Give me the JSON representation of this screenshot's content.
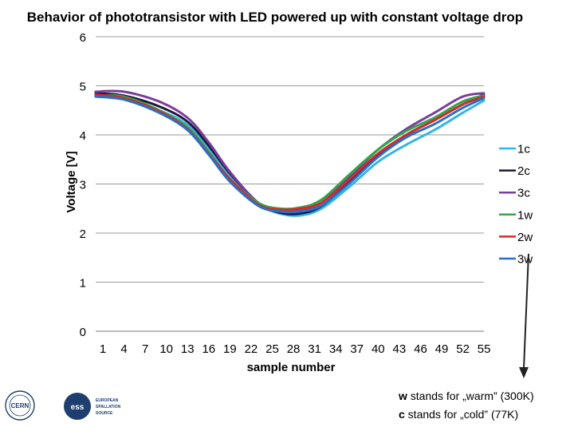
{
  "chart_data": {
    "type": "line",
    "title": "Behavior of phototransistor with LED powered up with constant voltage drop",
    "xlabel": "sample number",
    "ylabel": "Voltage [V]",
    "ylim": [
      0,
      6
    ],
    "yticks": [
      0,
      1,
      2,
      3,
      4,
      5,
      6
    ],
    "xticks": [
      1,
      4,
      7,
      10,
      13,
      16,
      19,
      22,
      25,
      28,
      31,
      34,
      37,
      40,
      43,
      46,
      49,
      52,
      55
    ],
    "grid": "horizontal",
    "legend_position": "right",
    "series": [
      {
        "name": "1c",
        "color": "#33b5e5",
        "points": [
          [
            1,
            4.78
          ],
          [
            5,
            4.72
          ],
          [
            10,
            4.5
          ],
          [
            14,
            4.2
          ],
          [
            17,
            3.7
          ],
          [
            20,
            3.15
          ],
          [
            24,
            2.6
          ],
          [
            27,
            2.4
          ],
          [
            30,
            2.36
          ],
          [
            33,
            2.5
          ],
          [
            37,
            2.95
          ],
          [
            41,
            3.45
          ],
          [
            45,
            3.8
          ],
          [
            49,
            4.1
          ],
          [
            53,
            4.45
          ],
          [
            56,
            4.7
          ]
        ]
      },
      {
        "name": "2c",
        "color": "#1a1a3e",
        "points": [
          [
            1,
            4.85
          ],
          [
            5,
            4.8
          ],
          [
            10,
            4.58
          ],
          [
            14,
            4.27
          ],
          [
            17,
            3.78
          ],
          [
            20,
            3.22
          ],
          [
            24,
            2.62
          ],
          [
            27,
            2.42
          ],
          [
            30,
            2.4
          ],
          [
            33,
            2.55
          ],
          [
            37,
            3.05
          ],
          [
            41,
            3.6
          ],
          [
            45,
            4.0
          ],
          [
            49,
            4.3
          ],
          [
            53,
            4.62
          ],
          [
            56,
            4.82
          ]
        ]
      },
      {
        "name": "3c",
        "color": "#7b3d9a",
        "points": [
          [
            1,
            4.88
          ],
          [
            5,
            4.88
          ],
          [
            10,
            4.68
          ],
          [
            14,
            4.35
          ],
          [
            17,
            3.85
          ],
          [
            20,
            3.25
          ],
          [
            24,
            2.62
          ],
          [
            27,
            2.47
          ],
          [
            30,
            2.48
          ],
          [
            33,
            2.62
          ],
          [
            37,
            3.15
          ],
          [
            41,
            3.7
          ],
          [
            45,
            4.12
          ],
          [
            49,
            4.45
          ],
          [
            53,
            4.78
          ],
          [
            56,
            4.85
          ]
        ]
      },
      {
        "name": "1w",
        "color": "#2ea84a",
        "points": [
          [
            1,
            4.8
          ],
          [
            5,
            4.78
          ],
          [
            10,
            4.5
          ],
          [
            14,
            4.15
          ],
          [
            17,
            3.65
          ],
          [
            20,
            3.1
          ],
          [
            24,
            2.62
          ],
          [
            27,
            2.5
          ],
          [
            30,
            2.52
          ],
          [
            33,
            2.68
          ],
          [
            37,
            3.2
          ],
          [
            41,
            3.7
          ],
          [
            45,
            4.08
          ],
          [
            49,
            4.35
          ],
          [
            53,
            4.68
          ],
          [
            56,
            4.8
          ]
        ]
      },
      {
        "name": "2w",
        "color": "#d42a2a",
        "points": [
          [
            1,
            4.82
          ],
          [
            5,
            4.75
          ],
          [
            10,
            4.48
          ],
          [
            14,
            4.12
          ],
          [
            17,
            3.62
          ],
          [
            20,
            3.1
          ],
          [
            24,
            2.58
          ],
          [
            27,
            2.48
          ],
          [
            30,
            2.5
          ],
          [
            33,
            2.62
          ],
          [
            37,
            3.1
          ],
          [
            41,
            3.62
          ],
          [
            45,
            4.0
          ],
          [
            49,
            4.3
          ],
          [
            53,
            4.62
          ],
          [
            56,
            4.78
          ]
        ]
      },
      {
        "name": "3w",
        "color": "#2a6fc4",
        "points": [
          [
            1,
            4.78
          ],
          [
            5,
            4.72
          ],
          [
            10,
            4.45
          ],
          [
            14,
            4.1
          ],
          [
            17,
            3.6
          ],
          [
            20,
            3.05
          ],
          [
            24,
            2.56
          ],
          [
            27,
            2.44
          ],
          [
            30,
            2.44
          ],
          [
            33,
            2.56
          ],
          [
            37,
            3.02
          ],
          [
            41,
            3.55
          ],
          [
            45,
            3.95
          ],
          [
            49,
            4.22
          ],
          [
            53,
            4.55
          ],
          [
            56,
            4.75
          ]
        ]
      }
    ]
  },
  "notes": {
    "line1_bold": "w",
    "line1_rest": " stands for „warm” (300K)",
    "line2_bold": "c",
    "line2_rest": " stands for „cold” (77K)"
  },
  "logos": {
    "cern": "CERN",
    "ess_mark": "ess",
    "ess_line1": "EUROPEAN",
    "ess_line2": "SPALLATION",
    "ess_line3": "SOURCE"
  }
}
